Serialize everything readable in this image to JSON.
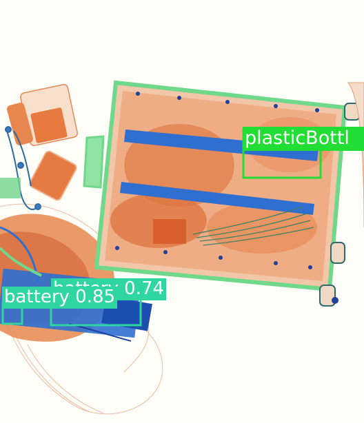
{
  "image": {
    "description_colors": {
      "background": "#fffdf8",
      "organic": "#e07a45",
      "organic_dark": "#c85a2a",
      "inorganic": "#6fd88a",
      "metal": "#2f6fd0",
      "metal_dark": "#1d3f9a"
    }
  },
  "detections": [
    {
      "label": "plasticBottl",
      "color": "#22dd33"
    },
    {
      "label": "battery 0.74",
      "color": "#2fd6a0"
    },
    {
      "label": "battery 0.85",
      "color": "#2fd6a0"
    }
  ]
}
